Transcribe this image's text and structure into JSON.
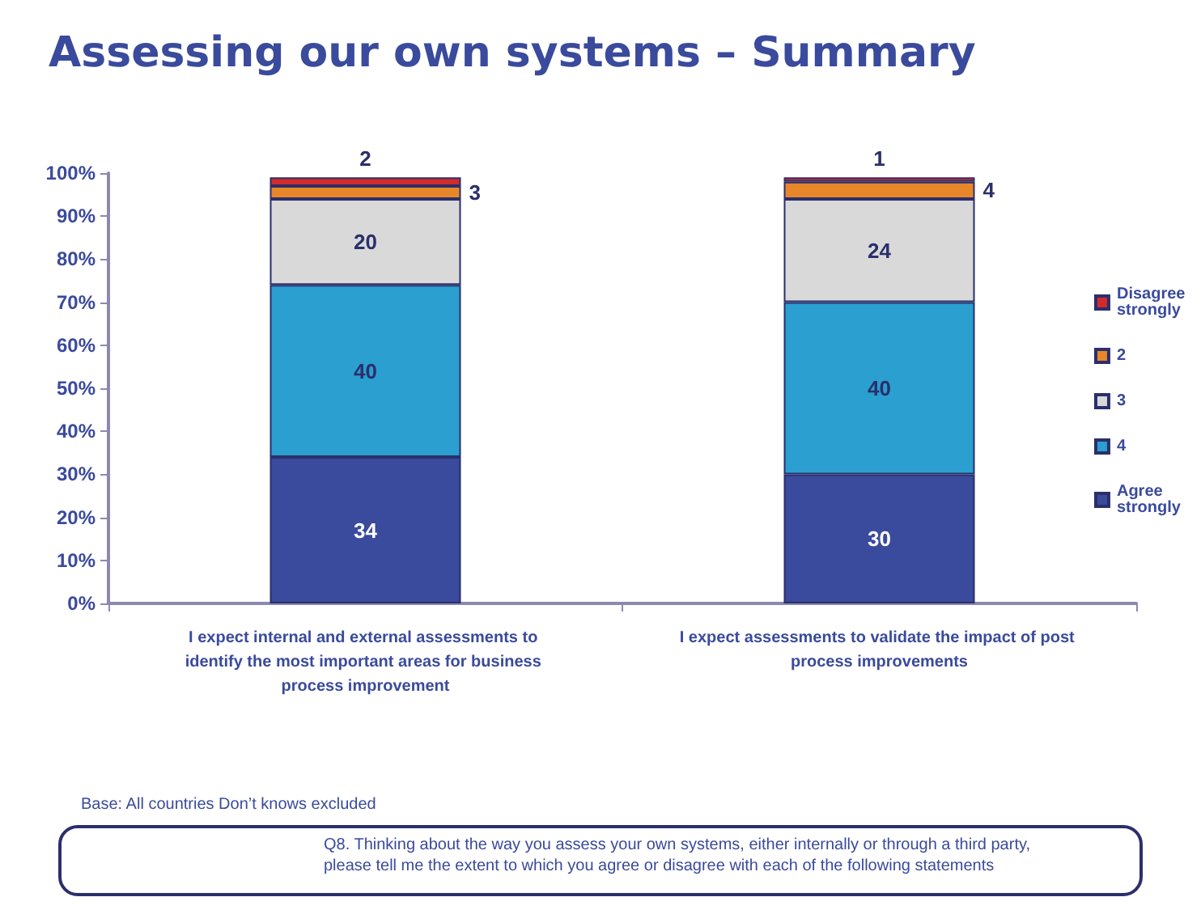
{
  "chart_data": {
    "type": "bar",
    "stacked": true,
    "title": "Assessing our own systems – Summary",
    "categories": [
      "I expect internal and external assessments to identify the most important areas for business process improvement",
      "I expect assessments to validate the impact of post process improvements"
    ],
    "series": [
      {
        "name": "Agree strongly",
        "color": "#3a4a9c",
        "values": [
          34,
          30
        ]
      },
      {
        "name": "4",
        "color": "#2a9fd0",
        "values": [
          40,
          40
        ]
      },
      {
        "name": "3",
        "color": "#d9d9d9",
        "values": [
          20,
          24
        ]
      },
      {
        "name": "2",
        "color": "#e8862a",
        "values": [
          3,
          4
        ]
      },
      {
        "name": "Disagree strongly",
        "color": "#d42a2a",
        "values": [
          2,
          1
        ]
      }
    ],
    "ylim": [
      0,
      100
    ],
    "yticks": [
      {
        "value": 0,
        "label": "0%"
      },
      {
        "value": 10,
        "label": "10%"
      },
      {
        "value": 20,
        "label": "20%"
      },
      {
        "value": 30,
        "label": "30%"
      },
      {
        "value": 40,
        "label": "40%"
      },
      {
        "value": 50,
        "label": "50%"
      },
      {
        "value": 60,
        "label": "60%"
      },
      {
        "value": 70,
        "label": "70%"
      },
      {
        "value": 80,
        "label": "80%"
      },
      {
        "value": 90,
        "label": "90%"
      },
      {
        "value": 100,
        "label": "100%"
      }
    ],
    "grid": false,
    "legend": "right",
    "data_labels": true,
    "annotations": [
      "Base: All countries Don’t knows excluded",
      "Q8. Thinking about the way you assess your own systems, either internally or through a third party, please tell me the extent to which you agree or disagree with each of the following statements"
    ]
  }
}
